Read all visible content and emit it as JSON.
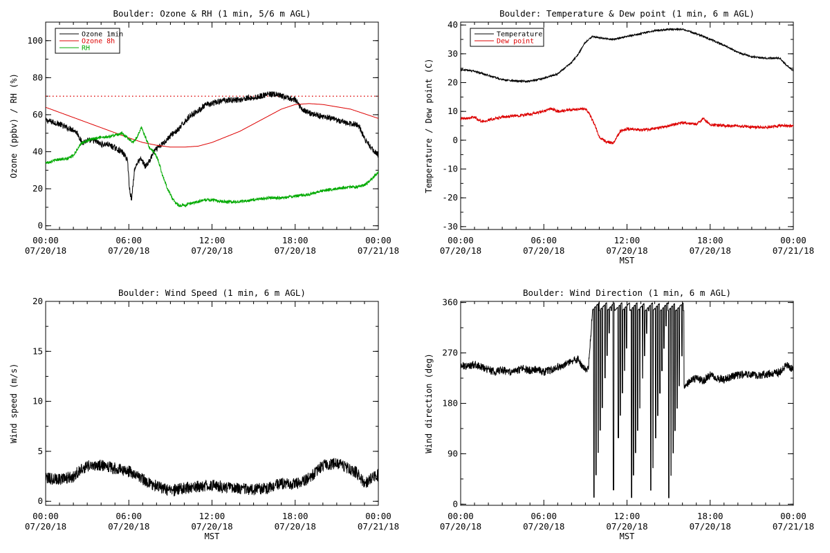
{
  "figure": {
    "background": "#ffffff",
    "axis_color": "#000000"
  },
  "chart_data": [
    {
      "id": "ozone",
      "type": "line",
      "title": "Boulder: Ozone & RH (1 min, 5/6 m AGL)",
      "xlabel": "",
      "ylabel": "Ozone (ppbv) / RH (%)",
      "x_ticks": [
        "00:00\n07/20/18",
        "06:00\n07/20/18",
        "12:00\n07/20/18",
        "18:00\n07/20/18",
        "00:00\n07/21/18"
      ],
      "xlim": [
        0,
        24
      ],
      "ylim": [
        -2,
        110
      ],
      "y_ticks": [
        0,
        20,
        40,
        60,
        80,
        100
      ],
      "legend": {
        "placement": "top-left",
        "entries": [
          "Ozone 1min",
          "Ozone 8h",
          "RH"
        ]
      },
      "reference_lines": [
        {
          "y": 70,
          "style": "dotted",
          "color": "#dd0000"
        }
      ],
      "series": [
        {
          "name": "Ozone 1min",
          "color": "#000000",
          "noise": 1.6,
          "x": [
            0,
            0.5,
            1,
            1.5,
            2,
            2.3,
            2.6,
            3,
            3.5,
            4,
            4.5,
            5,
            5.5,
            5.9,
            6.05,
            6.2,
            6.4,
            6.6,
            6.9,
            7.2,
            7.5,
            7.8,
            8.1,
            8.4,
            8.8,
            9.2,
            9.6,
            10,
            10.5,
            11,
            11.5,
            12,
            12.5,
            13,
            13.5,
            14,
            14.5,
            15,
            15.5,
            16,
            16.5,
            17,
            17.5,
            18,
            18.5,
            19,
            19.5,
            20,
            20.5,
            21,
            21.5,
            22,
            22.3,
            22.6,
            23,
            23.5,
            24
          ],
          "y": [
            57,
            56,
            55,
            53,
            52,
            50,
            45,
            46,
            46,
            44,
            44,
            42,
            40,
            36,
            20,
            14,
            30,
            34,
            36,
            32,
            35,
            40,
            42,
            44,
            47,
            50,
            52,
            56,
            60,
            62,
            65,
            66,
            67,
            68,
            68,
            68,
            69,
            69,
            70,
            71,
            71,
            70,
            69,
            68,
            63,
            61,
            60,
            59,
            58,
            57,
            56,
            55,
            55,
            54,
            47,
            42,
            38
          ]
        },
        {
          "name": "Ozone 8h",
          "color": "#dd0000",
          "noise": 0,
          "x": [
            0,
            2,
            4,
            6,
            7,
            8,
            9,
            10,
            11,
            12,
            14,
            16,
            17,
            18,
            19,
            20,
            22,
            24
          ],
          "y": [
            64,
            58.5,
            53,
            47.5,
            45,
            43.5,
            42.5,
            42.5,
            43,
            45,
            51,
            59,
            63,
            65.5,
            66,
            65.5,
            63,
            58
          ]
        },
        {
          "name": "RH",
          "color": "#00aa00",
          "noise": 0.8,
          "x": [
            0,
            0.5,
            1,
            1.5,
            2,
            2.5,
            3,
            3.5,
            4,
            4.5,
            5,
            5.5,
            6,
            6.3,
            6.6,
            6.9,
            7.2,
            7.5,
            7.8,
            8.1,
            8.4,
            8.8,
            9.2,
            9.6,
            10,
            10.5,
            11,
            11.5,
            12,
            13,
            14,
            15,
            16,
            17,
            18,
            19,
            20,
            21,
            22,
            22.5,
            23,
            23.5,
            24
          ],
          "y": [
            34,
            35,
            36,
            36,
            38,
            44,
            46,
            47,
            48,
            48,
            49,
            50,
            47,
            45,
            48,
            53,
            48,
            42,
            40,
            36,
            28,
            20,
            14,
            11,
            11,
            12,
            13,
            14,
            14,
            13,
            13,
            14,
            15,
            15,
            16,
            17,
            19,
            20,
            21,
            21,
            22,
            25,
            29
          ]
        }
      ]
    },
    {
      "id": "temp",
      "type": "line",
      "title": "Boulder: Temperature & Dew point (1 min, 6 m AGL)",
      "xlabel": "MST",
      "ylabel": "Temperature / Dew point (C)",
      "x_ticks": [
        "00:00\n07/20/18",
        "06:00\n07/20/18",
        "12:00\n07/20/18",
        "18:00\n07/20/18",
        "00:00\n07/21/18"
      ],
      "xlim": [
        0,
        24
      ],
      "ylim": [
        -31,
        41
      ],
      "y_ticks": [
        -30,
        -20,
        -10,
        0,
        10,
        20,
        30,
        40
      ],
      "legend": {
        "placement": "top-left",
        "entries": [
          "Temperature",
          "Dew point"
        ]
      },
      "series": [
        {
          "name": "Temperature",
          "color": "#000000",
          "noise": 0.3,
          "x": [
            0,
            1,
            2,
            3,
            4,
            5,
            6,
            7,
            8,
            8.5,
            9,
            9.5,
            10,
            11,
            12,
            13,
            14,
            15,
            16,
            17,
            18,
            19,
            20,
            21,
            22,
            23,
            23.5,
            24
          ],
          "y": [
            24.5,
            24,
            22.5,
            21,
            20.5,
            20.5,
            21.5,
            23,
            27,
            30,
            34,
            36,
            35.5,
            35,
            36,
            37,
            38,
            38.5,
            38.5,
            37,
            35,
            33,
            30.5,
            29,
            28.5,
            28.5,
            26,
            24
          ]
        },
        {
          "name": "Dew point",
          "color": "#dd0000",
          "noise": 0.5,
          "x": [
            0,
            1,
            1.5,
            2,
            3,
            4,
            5,
            6,
            6.5,
            7,
            8,
            9,
            9.3,
            9.7,
            10,
            10.5,
            11,
            11.5,
            12,
            13,
            14,
            15,
            16,
            17,
            17.5,
            18,
            19,
            20,
            21,
            22,
            23,
            24
          ],
          "y": [
            7.5,
            8,
            6.5,
            7,
            8,
            8.5,
            9,
            10,
            11,
            10,
            10.5,
            11,
            9,
            5,
            1,
            -0.5,
            -1,
            3,
            4,
            3.5,
            4,
            5,
            6,
            5.5,
            7.5,
            5.5,
            5,
            5,
            4.5,
            4.5,
            5,
            5
          ]
        }
      ]
    },
    {
      "id": "wspd",
      "type": "line",
      "title": "Boulder: Wind Speed (1 min, 6 m AGL)",
      "xlabel": "MST",
      "ylabel": "Wind speed (m/s)",
      "x_ticks": [
        "00:00\n07/20/18",
        "06:00\n07/20/18",
        "12:00\n07/20/18",
        "18:00\n07/20/18",
        "00:00\n07/21/18"
      ],
      "xlim": [
        0,
        24
      ],
      "ylim": [
        -0.4,
        20
      ],
      "y_ticks": [
        0,
        5,
        10,
        15,
        20
      ],
      "series": [
        {
          "name": "",
          "color": "#000000",
          "noise": 0.6,
          "x": [
            0,
            1,
            2,
            2.5,
            3,
            4,
            5,
            6,
            7,
            8,
            9,
            10,
            11,
            12,
            13,
            14,
            15,
            16,
            17,
            18,
            19,
            20,
            21,
            22,
            22.5,
            23,
            23.5,
            24
          ],
          "y": [
            2.3,
            2.2,
            2.5,
            3.2,
            3.5,
            3.6,
            3.3,
            3.0,
            2.2,
            1.5,
            1.0,
            1.3,
            1.5,
            1.6,
            1.4,
            1.3,
            1.2,
            1.3,
            1.8,
            1.7,
            2.3,
            3.6,
            3.8,
            3.2,
            2.8,
            1.8,
            2.3,
            2.6
          ]
        }
      ]
    },
    {
      "id": "wdir",
      "type": "line",
      "title": "Boulder: Wind Direction (1 min, 6 m AGL)",
      "xlabel": "MST",
      "ylabel": "Wind direction (deg)",
      "x_ticks": [
        "00:00\n07/20/18",
        "06:00\n07/20/18",
        "12:00\n07/20/18",
        "18:00\n07/20/18",
        "00:00\n07/21/18"
      ],
      "xlim": [
        0,
        24
      ],
      "ylim": [
        -2,
        362
      ],
      "y_ticks": [
        0,
        90,
        180,
        270,
        360
      ],
      "series": [
        {
          "name": "",
          "color": "#000000",
          "noise": 7,
          "wrap_between": [
            9.5,
            16.1
          ],
          "x": [
            0,
            0.5,
            1,
            1.5,
            2,
            2.5,
            3,
            3.5,
            4,
            4.5,
            5,
            5.5,
            6,
            6.5,
            7,
            7.5,
            8,
            8.5,
            8.8,
            9.2,
            9.5,
            16.2,
            16.5,
            17,
            17.5,
            18,
            18.5,
            19,
            19.5,
            20,
            20.5,
            21,
            21.5,
            22,
            22.5,
            23,
            23.5,
            24
          ],
          "y": [
            248,
            245,
            250,
            245,
            240,
            236,
            240,
            235,
            238,
            242,
            238,
            240,
            236,
            240,
            245,
            250,
            255,
            260,
            245,
            240,
            340,
            210,
            220,
            225,
            220,
            230,
            225,
            222,
            228,
            230,
            232,
            232,
            230,
            232,
            233,
            235,
            250,
            240
          ]
        }
      ]
    }
  ]
}
